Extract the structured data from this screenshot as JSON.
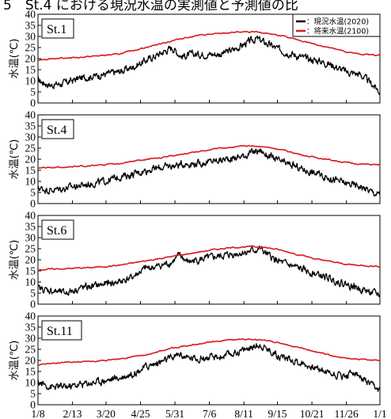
{
  "header": {
    "title": "5　St.4 における現況水温の実測値と予測値の比"
  },
  "legend": {
    "items": [
      {
        "label": "：現況水温(2020)",
        "color": "#000000"
      },
      {
        "label": "：将来水温(2100)",
        "color": "#d81b1b"
      }
    ]
  },
  "y_label": "水温(℃)",
  "chart_data": [
    {
      "type": "line",
      "station": "St.1",
      "ylim": [
        0,
        40
      ],
      "yticks": [
        0,
        5,
        10,
        15,
        20,
        25,
        30,
        35,
        40
      ],
      "x_ticks": [
        "1/8",
        "2/13",
        "3/20",
        "4/25",
        "5/31",
        "7/6",
        "8/11",
        "9/15",
        "10/21",
        "11/26",
        "1/1"
      ],
      "series": [
        {
          "name": "現況水温(2020)",
          "color": "#000000",
          "points": [
            [
              0,
              10
            ],
            [
              14,
              8
            ],
            [
              28,
              9
            ],
            [
              42,
              11
            ],
            [
              56,
              12
            ],
            [
              70,
              13
            ],
            [
              84,
              14
            ],
            [
              98,
              16
            ],
            [
              112,
              19
            ],
            [
              126,
              22
            ],
            [
              140,
              25
            ],
            [
              150,
              21
            ],
            [
              162,
              22
            ],
            [
              176,
              22
            ],
            [
              190,
              22
            ],
            [
              204,
              24
            ],
            [
              218,
              27
            ],
            [
              228,
              29
            ],
            [
              238,
              27
            ],
            [
              252,
              24
            ],
            [
              266,
              22
            ],
            [
              280,
              20
            ],
            [
              294,
              19
            ],
            [
              308,
              17
            ],
            [
              322,
              14
            ],
            [
              336,
              13
            ],
            [
              350,
              8
            ],
            [
              357,
              5
            ]
          ]
        },
        {
          "name": "将来水温(2100)",
          "color": "#d81b1b",
          "points": [
            [
              0,
              19.5
            ],
            [
              14,
              20
            ],
            [
              28,
              20.3
            ],
            [
              42,
              20.5
            ],
            [
              56,
              21
            ],
            [
              70,
              21.5
            ],
            [
              84,
              22
            ],
            [
              98,
              23.5
            ],
            [
              112,
              25
            ],
            [
              126,
              26.5
            ],
            [
              140,
              28
            ],
            [
              154,
              29.5
            ],
            [
              168,
              30.5
            ],
            [
              182,
              31
            ],
            [
              196,
              31.5
            ],
            [
              210,
              32
            ],
            [
              224,
              32
            ],
            [
              238,
              31.5
            ],
            [
              252,
              30.5
            ],
            [
              266,
              29
            ],
            [
              280,
              27.5
            ],
            [
              294,
              26
            ],
            [
              308,
              24.5
            ],
            [
              322,
              23
            ],
            [
              336,
              22
            ],
            [
              357,
              21.5
            ]
          ]
        }
      ]
    },
    {
      "type": "line",
      "station": "St.4",
      "ylim": [
        0,
        40
      ],
      "yticks": [
        0,
        5,
        10,
        15,
        20,
        25,
        30,
        35,
        40
      ],
      "x_ticks": [
        "1/8",
        "2/13",
        "3/20",
        "4/25",
        "5/31",
        "7/6",
        "8/11",
        "9/15",
        "10/21",
        "11/26",
        "1/1"
      ],
      "series": [
        {
          "name": "現況水温(2020)",
          "color": "#000000",
          "points": [
            [
              0,
              7
            ],
            [
              14,
              6
            ],
            [
              28,
              7
            ],
            [
              42,
              8
            ],
            [
              56,
              9
            ],
            [
              70,
              10
            ],
            [
              84,
              12
            ],
            [
              98,
              13
            ],
            [
              112,
              15
            ],
            [
              126,
              16
            ],
            [
              140,
              17
            ],
            [
              154,
              18
            ],
            [
              168,
              18
            ],
            [
              182,
              19
            ],
            [
              196,
              20
            ],
            [
              210,
              21
            ],
            [
              224,
              23
            ],
            [
              232,
              24
            ],
            [
              238,
              22
            ],
            [
              252,
              19
            ],
            [
              266,
              17
            ],
            [
              280,
              15
            ],
            [
              294,
              13
            ],
            [
              308,
              11
            ],
            [
              322,
              9
            ],
            [
              336,
              8
            ],
            [
              350,
              5
            ],
            [
              357,
              4
            ]
          ]
        },
        {
          "name": "将来水温(2100)",
          "color": "#d81b1b",
          "points": [
            [
              0,
              16
            ],
            [
              14,
              16.3
            ],
            [
              28,
              16.5
            ],
            [
              42,
              16.8
            ],
            [
              56,
              17
            ],
            [
              70,
              17.5
            ],
            [
              84,
              18
            ],
            [
              98,
              19
            ],
            [
              112,
              19.8
            ],
            [
              126,
              20.5
            ],
            [
              140,
              21.5
            ],
            [
              154,
              22.5
            ],
            [
              168,
              23.5
            ],
            [
              182,
              24.5
            ],
            [
              196,
              25.2
            ],
            [
              210,
              25.7
            ],
            [
              224,
              26
            ],
            [
              238,
              25.5
            ],
            [
              252,
              24.5
            ],
            [
              266,
              23
            ],
            [
              280,
              21.5
            ],
            [
              294,
              20.5
            ],
            [
              308,
              19.5
            ],
            [
              322,
              18.5
            ],
            [
              336,
              17.8
            ],
            [
              357,
              17.5
            ]
          ]
        }
      ]
    },
    {
      "type": "line",
      "station": "St.6",
      "ylim": [
        0,
        40
      ],
      "yticks": [
        0,
        5,
        10,
        15,
        20,
        25,
        30,
        35,
        40
      ],
      "x_ticks": [
        "1/8",
        "2/13",
        "3/20",
        "4/25",
        "5/31",
        "7/6",
        "8/11",
        "9/15",
        "10/21",
        "11/26",
        "1/1"
      ],
      "series": [
        {
          "name": "現況水温(2020)",
          "color": "#000000",
          "points": [
            [
              0,
              7
            ],
            [
              14,
              6
            ],
            [
              28,
              5
            ],
            [
              42,
              7
            ],
            [
              56,
              8
            ],
            [
              70,
              9
            ],
            [
              84,
              10
            ],
            [
              98,
              12
            ],
            [
              112,
              16
            ],
            [
              126,
              17
            ],
            [
              140,
              19
            ],
            [
              148,
              22
            ],
            [
              156,
              19
            ],
            [
              168,
              20
            ],
            [
              182,
              21
            ],
            [
              196,
              22
            ],
            [
              210,
              23
            ],
            [
              224,
              24
            ],
            [
              232,
              25
            ],
            [
              240,
              22
            ],
            [
              252,
              19
            ],
            [
              266,
              17
            ],
            [
              280,
              15
            ],
            [
              294,
              13
            ],
            [
              308,
              11
            ],
            [
              322,
              9
            ],
            [
              336,
              7
            ],
            [
              350,
              5
            ],
            [
              357,
              4
            ]
          ]
        },
        {
          "name": "将来水温(2100)",
          "color": "#d81b1b",
          "points": [
            [
              0,
              15.5
            ],
            [
              14,
              15.8
            ],
            [
              28,
              16
            ],
            [
              42,
              16.3
            ],
            [
              56,
              16.5
            ],
            [
              70,
              17
            ],
            [
              84,
              17.5
            ],
            [
              98,
              18.5
            ],
            [
              112,
              19.5
            ],
            [
              126,
              20.5
            ],
            [
              140,
              21.5
            ],
            [
              154,
              22.5
            ],
            [
              168,
              23.5
            ],
            [
              182,
              24.5
            ],
            [
              196,
              25.2
            ],
            [
              210,
              25.7
            ],
            [
              224,
              26
            ],
            [
              238,
              25.5
            ],
            [
              252,
              24.5
            ],
            [
              266,
              23
            ],
            [
              280,
              21.5
            ],
            [
              294,
              20
            ],
            [
              308,
              19
            ],
            [
              322,
              18
            ],
            [
              336,
              17.5
            ],
            [
              357,
              17
            ]
          ]
        }
      ]
    },
    {
      "type": "line",
      "station": "St.11",
      "ylim": [
        0,
        40
      ],
      "yticks": [
        0,
        5,
        10,
        15,
        20,
        25,
        30,
        35,
        40
      ],
      "x_ticks": [
        "1/8",
        "2/13",
        "3/20",
        "4/25",
        "5/31",
        "7/6",
        "8/11",
        "9/15",
        "10/21",
        "11/26",
        "1/1"
      ],
      "series": [
        {
          "name": "現況水温(2020)",
          "color": "#000000",
          "points": [
            [
              0,
              10
            ],
            [
              14,
              8
            ],
            [
              28,
              8
            ],
            [
              42,
              9
            ],
            [
              56,
              10
            ],
            [
              70,
              11
            ],
            [
              84,
              12
            ],
            [
              98,
              14
            ],
            [
              112,
              17
            ],
            [
              126,
              19
            ],
            [
              140,
              21
            ],
            [
              148,
              23
            ],
            [
              156,
              21
            ],
            [
              168,
              21
            ],
            [
              182,
              21
            ],
            [
              196,
              22
            ],
            [
              210,
              24
            ],
            [
              224,
              26
            ],
            [
              232,
              27
            ],
            [
              240,
              25
            ],
            [
              252,
              22
            ],
            [
              266,
              20
            ],
            [
              280,
              18
            ],
            [
              294,
              16
            ],
            [
              308,
              14
            ],
            [
              322,
              13
            ],
            [
              330,
              15
            ],
            [
              340,
              11
            ],
            [
              350,
              8
            ],
            [
              357,
              6
            ]
          ]
        },
        {
          "name": "将来水温(2100)",
          "color": "#d81b1b",
          "points": [
            [
              0,
              18
            ],
            [
              14,
              18.5
            ],
            [
              28,
              19
            ],
            [
              42,
              19.3
            ],
            [
              56,
              19.5
            ],
            [
              70,
              20
            ],
            [
              84,
              20.5
            ],
            [
              98,
              21.5
            ],
            [
              112,
              22.5
            ],
            [
              126,
              24
            ],
            [
              140,
              25.5
            ],
            [
              154,
              26.5
            ],
            [
              168,
              27.5
            ],
            [
              182,
              28.5
            ],
            [
              196,
              29
            ],
            [
              210,
              29.5
            ],
            [
              224,
              29.5
            ],
            [
              238,
              29
            ],
            [
              252,
              28
            ],
            [
              266,
              26.5
            ],
            [
              280,
              25
            ],
            [
              294,
              23.5
            ],
            [
              308,
              22
            ],
            [
              322,
              21
            ],
            [
              336,
              20.5
            ],
            [
              357,
              20
            ]
          ]
        }
      ]
    }
  ]
}
